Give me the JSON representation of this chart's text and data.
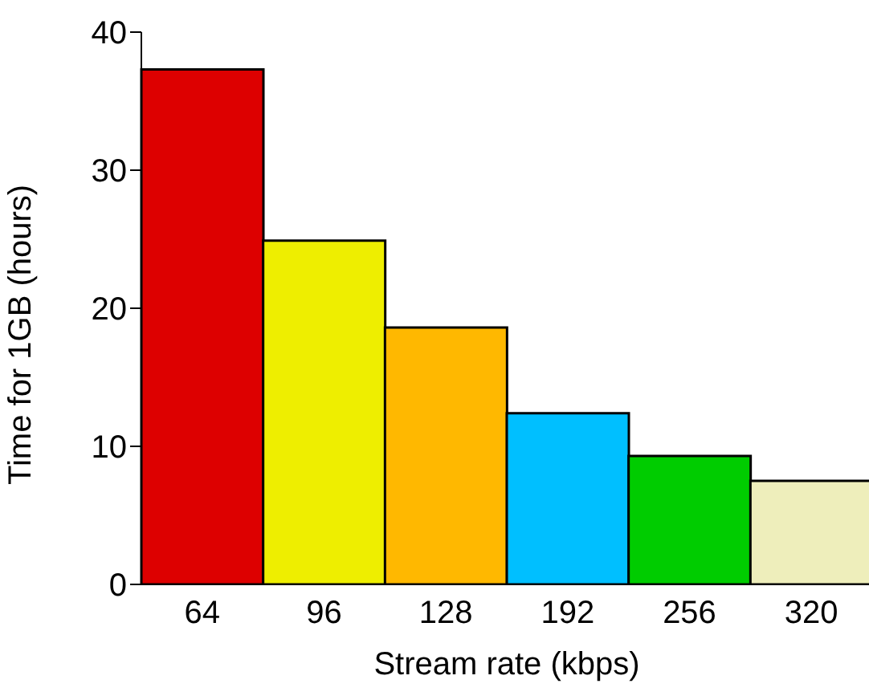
{
  "chart_data": {
    "type": "bar",
    "xlabel": "Stream rate (kbps)",
    "ylabel": "Time for 1GB (hours)",
    "categories": [
      "64",
      "96",
      "128",
      "192",
      "256",
      "320"
    ],
    "values": [
      37.3,
      24.9,
      18.6,
      12.4,
      9.3,
      7.5
    ],
    "colors": [
      "#dd0000",
      "#eeee00",
      "#ffb800",
      "#00bfff",
      "#00cc00",
      "#eeeebb"
    ],
    "ylim": [
      0,
      40
    ],
    "yticks": [
      0,
      10,
      20,
      30,
      40
    ],
    "grid": false,
    "legend": false
  }
}
